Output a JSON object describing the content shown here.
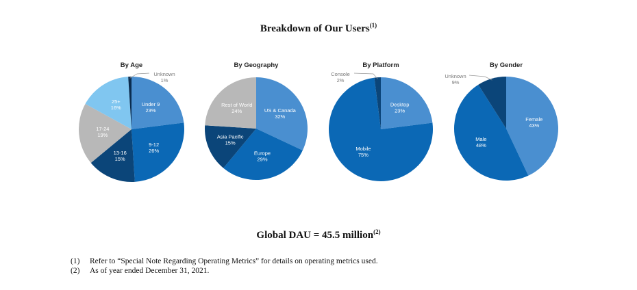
{
  "title": "Breakdown of Our Users",
  "title_ref": "(1)",
  "dau": {
    "text": "Global DAU = 45.5 million",
    "ref": "(2)"
  },
  "footnotes": [
    {
      "num": "(1)",
      "text": "Refer to “Special Note Regarding Operating Metrics” for details on operating metrics used."
    },
    {
      "num": "(2)",
      "text": "As of year ended December 31, 2021."
    }
  ],
  "colors": {
    "light_blue": "#4a8fd0",
    "blue": "#0b68b5",
    "navy": "#0b4579",
    "grey": "#b8b8b8",
    "sky": "#80c6f0",
    "darkest": "#0a2c4f"
  },
  "chart_data": [
    {
      "type": "pie",
      "title": "By Age",
      "slices": [
        {
          "label": "Under 9",
          "value": 23,
          "color": "#4a8fd0"
        },
        {
          "label": "9-12",
          "value": 26,
          "color": "#0b68b5"
        },
        {
          "label": "13-16",
          "value": 15,
          "color": "#0b4579"
        },
        {
          "label": "17-24",
          "value": 19,
          "color": "#b8b8b8"
        },
        {
          "label": "25+",
          "value": 16,
          "color": "#80c6f0"
        },
        {
          "label": "Unknown",
          "value": 1,
          "color": "#0a2c4f"
        }
      ]
    },
    {
      "type": "pie",
      "title": "By Geography",
      "slices": [
        {
          "label": "US & Canada",
          "value": 32,
          "color": "#4a8fd0"
        },
        {
          "label": "Europe",
          "value": 29,
          "color": "#0b68b5"
        },
        {
          "label": "Asia Pacific",
          "value": 15,
          "color": "#0b4579"
        },
        {
          "label": "Rest of World",
          "value": 24,
          "color": "#b8b8b8"
        }
      ]
    },
    {
      "type": "pie",
      "title": "By Platform",
      "slices": [
        {
          "label": "Desktop",
          "value": 23,
          "color": "#4a8fd0"
        },
        {
          "label": "Mobile",
          "value": 75,
          "color": "#0b68b5"
        },
        {
          "label": "Console",
          "value": 2,
          "color": "#0b4579"
        }
      ]
    },
    {
      "type": "pie",
      "title": "By Gender",
      "slices": [
        {
          "label": "Female",
          "value": 43,
          "color": "#4a8fd0"
        },
        {
          "label": "Male",
          "value": 48,
          "color": "#0b68b5"
        },
        {
          "label": "Unknown",
          "value": 9,
          "color": "#0b4579"
        }
      ]
    }
  ]
}
